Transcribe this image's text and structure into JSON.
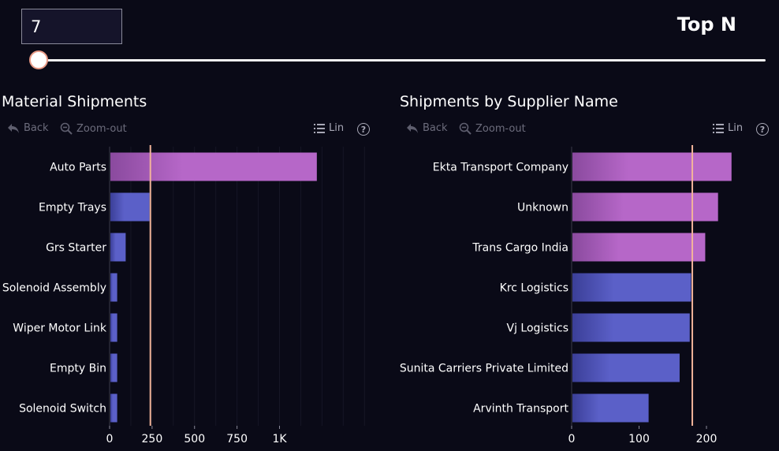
{
  "controls": {
    "topn_value": "7",
    "topn_label": "Top N",
    "slider_value": 7
  },
  "colors": {
    "background": "#0a0a17",
    "bar_purple": "#b667c8",
    "bar_blue": "#5b60c8",
    "threshold_line": "#f2b49a"
  },
  "toolbar": {
    "back_label": "Back",
    "zoomout_label": "Zoom-out",
    "lin_label": "Lin",
    "help_label": "?",
    "back_icon": "undo-arrow-icon",
    "zoomout_icon": "magnifier-minus-icon",
    "lin_icon": "list-icon"
  },
  "chart_data": [
    {
      "type": "bar",
      "orientation": "horizontal",
      "title": "Material Shipments",
      "categories": [
        "Auto Parts",
        "Empty Trays",
        "Grs Starter",
        "Solenoid Assembly",
        "Wiper Motor Link",
        "Empty Bin",
        "Solenoid Switch"
      ],
      "values": [
        1215,
        230,
        90,
        40,
        40,
        40,
        40
      ],
      "bar_colors": [
        "purple",
        "blue",
        "blue",
        "blue",
        "blue",
        "blue",
        "blue"
      ],
      "threshold": 240,
      "xlim": [
        0,
        1500
      ],
      "xticks": [
        0,
        250,
        500,
        750,
        1000
      ],
      "xtick_labels": [
        "0",
        "250",
        "500",
        "750",
        "1K"
      ],
      "grid": true
    },
    {
      "type": "bar",
      "orientation": "horizontal",
      "title": "Shipments by Supplier Name",
      "categories": [
        "Ekta Transport Company",
        "Unknown",
        "Trans Cargo India",
        "Krc Logistics",
        "Vj Logistics",
        "Sunita Carriers Private Limited",
        "Arvinth Transport"
      ],
      "values": [
        236,
        216,
        197,
        176,
        174,
        159,
        113
      ],
      "bar_colors": [
        "purple",
        "purple",
        "purple",
        "blue",
        "blue",
        "blue",
        "blue"
      ],
      "threshold": 179,
      "xlim": [
        0,
        300
      ],
      "xticks": [
        0,
        100,
        200
      ],
      "xtick_labels": [
        "0",
        "100",
        "200"
      ],
      "grid": false
    }
  ]
}
